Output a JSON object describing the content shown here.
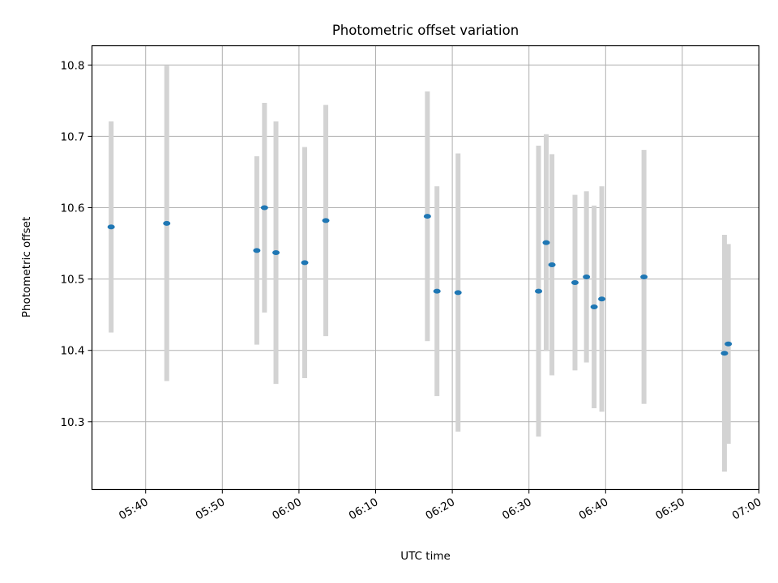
{
  "chart_data": {
    "type": "scatter",
    "title": "Photometric offset variation",
    "xlabel": "UTC time",
    "ylabel": "Photometric offset",
    "x_unit": "minutes_of_day",
    "xlim": [
      "05:33",
      "07:00"
    ],
    "ylim": [
      10.205,
      10.827
    ],
    "x_ticks": [
      "05:40",
      "05:50",
      "06:00",
      "06:10",
      "06:20",
      "06:30",
      "06:40",
      "06:50",
      "07:00"
    ],
    "y_ticks": [
      10.3,
      10.4,
      10.5,
      10.6,
      10.7,
      10.8
    ],
    "grid": true,
    "marker_color": "#1f77b4",
    "errorbar_color": "#d3d3d3",
    "points": [
      {
        "x": "05:35:30",
        "y": 10.573,
        "err": 0.148
      },
      {
        "x": "05:42:45",
        "y": 10.578,
        "err": 0.221
      },
      {
        "x": "05:54:30",
        "y": 10.54,
        "err": 0.132
      },
      {
        "x": "05:55:30",
        "y": 10.6,
        "err": 0.147
      },
      {
        "x": "05:57:00",
        "y": 10.537,
        "err": 0.184
      },
      {
        "x": "06:00:45",
        "y": 10.523,
        "err": 0.162
      },
      {
        "x": "06:03:30",
        "y": 10.582,
        "err": 0.162
      },
      {
        "x": "06:16:45",
        "y": 10.588,
        "err": 0.175
      },
      {
        "x": "06:18:00",
        "y": 10.483,
        "err": 0.147
      },
      {
        "x": "06:20:45",
        "y": 10.481,
        "err": 0.195
      },
      {
        "x": "06:31:15",
        "y": 10.483,
        "err": 0.204
      },
      {
        "x": "06:32:15",
        "y": 10.551,
        "err": 0.152
      },
      {
        "x": "06:33:00",
        "y": 10.52,
        "err": 0.155
      },
      {
        "x": "06:36:00",
        "y": 10.495,
        "err": 0.123
      },
      {
        "x": "06:37:30",
        "y": 10.503,
        "err": 0.12
      },
      {
        "x": "06:38:30",
        "y": 10.461,
        "err": 0.142
      },
      {
        "x": "06:39:30",
        "y": 10.472,
        "err": 0.158
      },
      {
        "x": "06:45:00",
        "y": 10.503,
        "err": 0.178
      },
      {
        "x": "06:55:30",
        "y": 10.396,
        "err": 0.166
      },
      {
        "x": "06:56:00",
        "y": 10.409,
        "err": 0.14
      }
    ]
  }
}
